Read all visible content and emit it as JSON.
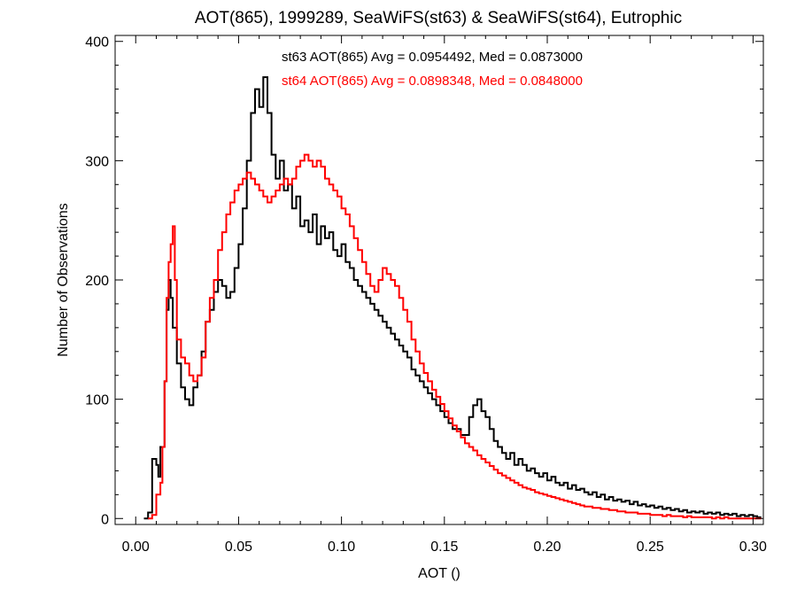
{
  "chart_data": {
    "type": "histogram-step",
    "title": "AOT(865), 1999289, SeaWiFS(st63) & SeaWiFS(st64), Eutrophic",
    "xlabel": "AOT ()",
    "ylabel": "Number of Observations",
    "xlim": [
      -0.01,
      0.305
    ],
    "ylim": [
      -5,
      405
    ],
    "xticks": [
      0.0,
      0.05,
      0.1,
      0.15,
      0.2,
      0.25,
      0.3
    ],
    "xtick_labels": [
      "0.00",
      "0.05",
      "0.10",
      "0.15",
      "0.20",
      "0.25",
      "0.30"
    ],
    "yticks": [
      0,
      100,
      200,
      300,
      400
    ],
    "ytick_labels": [
      "0",
      "100",
      "200",
      "300",
      "400"
    ],
    "grid": false,
    "annotations": [
      {
        "text": "st63 AOT(865) Avg = 0.0954492, Med = 0.0873000",
        "color": "#000000"
      },
      {
        "text": "st64 AOT(865) Avg = 0.0898348, Med = 0.0848000",
        "color": "#ff0000"
      }
    ],
    "series": [
      {
        "color": "#000000",
        "points": [
          [
            0.004,
            0
          ],
          [
            0.006,
            5
          ],
          [
            0.008,
            50
          ],
          [
            0.01,
            45
          ],
          [
            0.011,
            35
          ],
          [
            0.012,
            60
          ],
          [
            0.014,
            115
          ],
          [
            0.015,
            175
          ],
          [
            0.016,
            200
          ],
          [
            0.017,
            185
          ],
          [
            0.018,
            160
          ],
          [
            0.02,
            130
          ],
          [
            0.022,
            110
          ],
          [
            0.024,
            100
          ],
          [
            0.026,
            95
          ],
          [
            0.028,
            110
          ],
          [
            0.03,
            120
          ],
          [
            0.032,
            140
          ],
          [
            0.034,
            165
          ],
          [
            0.036,
            175
          ],
          [
            0.038,
            190
          ],
          [
            0.04,
            200
          ],
          [
            0.042,
            195
          ],
          [
            0.044,
            185
          ],
          [
            0.046,
            190
          ],
          [
            0.048,
            210
          ],
          [
            0.05,
            230
          ],
          [
            0.052,
            260
          ],
          [
            0.054,
            300
          ],
          [
            0.056,
            340
          ],
          [
            0.058,
            360
          ],
          [
            0.06,
            345
          ],
          [
            0.062,
            370
          ],
          [
            0.064,
            340
          ],
          [
            0.066,
            305
          ],
          [
            0.068,
            285
          ],
          [
            0.07,
            300
          ],
          [
            0.072,
            275
          ],
          [
            0.074,
            280
          ],
          [
            0.076,
            260
          ],
          [
            0.078,
            270
          ],
          [
            0.08,
            245
          ],
          [
            0.082,
            250
          ],
          [
            0.084,
            240
          ],
          [
            0.086,
            255
          ],
          [
            0.088,
            230
          ],
          [
            0.09,
            245
          ],
          [
            0.092,
            235
          ],
          [
            0.094,
            240
          ],
          [
            0.096,
            225
          ],
          [
            0.098,
            220
          ],
          [
            0.1,
            230
          ],
          [
            0.102,
            215
          ],
          [
            0.104,
            210
          ],
          [
            0.106,
            200
          ],
          [
            0.108,
            195
          ],
          [
            0.11,
            190
          ],
          [
            0.112,
            185
          ],
          [
            0.114,
            180
          ],
          [
            0.116,
            175
          ],
          [
            0.118,
            170
          ],
          [
            0.12,
            165
          ],
          [
            0.122,
            160
          ],
          [
            0.124,
            155
          ],
          [
            0.126,
            150
          ],
          [
            0.128,
            145
          ],
          [
            0.13,
            140
          ],
          [
            0.132,
            135
          ],
          [
            0.134,
            125
          ],
          [
            0.136,
            120
          ],
          [
            0.138,
            115
          ],
          [
            0.14,
            110
          ],
          [
            0.142,
            105
          ],
          [
            0.144,
            100
          ],
          [
            0.146,
            95
          ],
          [
            0.148,
            90
          ],
          [
            0.15,
            85
          ],
          [
            0.152,
            80
          ],
          [
            0.154,
            75
          ],
          [
            0.156,
            75
          ],
          [
            0.158,
            70
          ],
          [
            0.16,
            70
          ],
          [
            0.162,
            85
          ],
          [
            0.164,
            95
          ],
          [
            0.166,
            100
          ],
          [
            0.168,
            90
          ],
          [
            0.17,
            85
          ],
          [
            0.172,
            75
          ],
          [
            0.174,
            65
          ],
          [
            0.176,
            60
          ],
          [
            0.178,
            55
          ],
          [
            0.18,
            50
          ],
          [
            0.182,
            55
          ],
          [
            0.184,
            45
          ],
          [
            0.186,
            50
          ],
          [
            0.188,
            45
          ],
          [
            0.19,
            40
          ],
          [
            0.192,
            42
          ],
          [
            0.194,
            38
          ],
          [
            0.196,
            35
          ],
          [
            0.198,
            38
          ],
          [
            0.2,
            32
          ],
          [
            0.202,
            35
          ],
          [
            0.204,
            30
          ],
          [
            0.206,
            28
          ],
          [
            0.208,
            30
          ],
          [
            0.21,
            25
          ],
          [
            0.212,
            28
          ],
          [
            0.214,
            24
          ],
          [
            0.216,
            25
          ],
          [
            0.218,
            22
          ],
          [
            0.22,
            20
          ],
          [
            0.222,
            22
          ],
          [
            0.224,
            18
          ],
          [
            0.226,
            20
          ],
          [
            0.228,
            16
          ],
          [
            0.23,
            18
          ],
          [
            0.232,
            15
          ],
          [
            0.234,
            16
          ],
          [
            0.236,
            14
          ],
          [
            0.238,
            15
          ],
          [
            0.24,
            12
          ],
          [
            0.242,
            14
          ],
          [
            0.244,
            11
          ],
          [
            0.246,
            12
          ],
          [
            0.248,
            10
          ],
          [
            0.25,
            11
          ],
          [
            0.252,
            9
          ],
          [
            0.254,
            10
          ],
          [
            0.256,
            8
          ],
          [
            0.258,
            9
          ],
          [
            0.26,
            7
          ],
          [
            0.262,
            8
          ],
          [
            0.264,
            6
          ],
          [
            0.266,
            7
          ],
          [
            0.268,
            5
          ],
          [
            0.27,
            6
          ],
          [
            0.272,
            5
          ],
          [
            0.274,
            6
          ],
          [
            0.276,
            4
          ],
          [
            0.278,
            5
          ],
          [
            0.28,
            4
          ],
          [
            0.282,
            5
          ],
          [
            0.284,
            3
          ],
          [
            0.286,
            4
          ],
          [
            0.288,
            3
          ],
          [
            0.29,
            4
          ],
          [
            0.292,
            2
          ],
          [
            0.294,
            3
          ],
          [
            0.296,
            2
          ],
          [
            0.298,
            3
          ],
          [
            0.3,
            2
          ],
          [
            0.302,
            1
          ],
          [
            0.304,
            1
          ]
        ]
      },
      {
        "color": "#ff0000",
        "points": [
          [
            0.006,
            0
          ],
          [
            0.008,
            3
          ],
          [
            0.01,
            20
          ],
          [
            0.012,
            30
          ],
          [
            0.013,
            60
          ],
          [
            0.014,
            115
          ],
          [
            0.015,
            185
          ],
          [
            0.016,
            215
          ],
          [
            0.017,
            230
          ],
          [
            0.018,
            245
          ],
          [
            0.019,
            200
          ],
          [
            0.02,
            150
          ],
          [
            0.022,
            135
          ],
          [
            0.024,
            130
          ],
          [
            0.026,
            120
          ],
          [
            0.028,
            115
          ],
          [
            0.03,
            120
          ],
          [
            0.032,
            135
          ],
          [
            0.034,
            165
          ],
          [
            0.036,
            185
          ],
          [
            0.038,
            200
          ],
          [
            0.04,
            225
          ],
          [
            0.042,
            240
          ],
          [
            0.044,
            255
          ],
          [
            0.046,
            265
          ],
          [
            0.048,
            275
          ],
          [
            0.05,
            280
          ],
          [
            0.052,
            285
          ],
          [
            0.054,
            290
          ],
          [
            0.056,
            285
          ],
          [
            0.058,
            280
          ],
          [
            0.06,
            275
          ],
          [
            0.062,
            270
          ],
          [
            0.064,
            265
          ],
          [
            0.066,
            270
          ],
          [
            0.068,
            275
          ],
          [
            0.07,
            280
          ],
          [
            0.072,
            285
          ],
          [
            0.074,
            280
          ],
          [
            0.076,
            285
          ],
          [
            0.078,
            295
          ],
          [
            0.08,
            300
          ],
          [
            0.082,
            305
          ],
          [
            0.084,
            300
          ],
          [
            0.086,
            295
          ],
          [
            0.088,
            300
          ],
          [
            0.09,
            295
          ],
          [
            0.092,
            285
          ],
          [
            0.094,
            280
          ],
          [
            0.096,
            275
          ],
          [
            0.098,
            270
          ],
          [
            0.1,
            260
          ],
          [
            0.102,
            255
          ],
          [
            0.104,
            245
          ],
          [
            0.106,
            235
          ],
          [
            0.108,
            225
          ],
          [
            0.11,
            215
          ],
          [
            0.112,
            205
          ],
          [
            0.114,
            195
          ],
          [
            0.116,
            190
          ],
          [
            0.118,
            200
          ],
          [
            0.12,
            210
          ],
          [
            0.122,
            205
          ],
          [
            0.124,
            200
          ],
          [
            0.126,
            195
          ],
          [
            0.128,
            185
          ],
          [
            0.13,
            175
          ],
          [
            0.132,
            165
          ],
          [
            0.134,
            150
          ],
          [
            0.136,
            140
          ],
          [
            0.138,
            130
          ],
          [
            0.14,
            122
          ],
          [
            0.142,
            115
          ],
          [
            0.144,
            108
          ],
          [
            0.146,
            102
          ],
          [
            0.148,
            96
          ],
          [
            0.15,
            90
          ],
          [
            0.152,
            84
          ],
          [
            0.154,
            78
          ],
          [
            0.156,
            73
          ],
          [
            0.158,
            68
          ],
          [
            0.16,
            63
          ],
          [
            0.162,
            60
          ],
          [
            0.164,
            57
          ],
          [
            0.166,
            53
          ],
          [
            0.168,
            50
          ],
          [
            0.17,
            47
          ],
          [
            0.172,
            44
          ],
          [
            0.174,
            41
          ],
          [
            0.176,
            38
          ],
          [
            0.178,
            36
          ],
          [
            0.18,
            34
          ],
          [
            0.182,
            32
          ],
          [
            0.184,
            30
          ],
          [
            0.186,
            28
          ],
          [
            0.188,
            26
          ],
          [
            0.19,
            25
          ],
          [
            0.192,
            24
          ],
          [
            0.194,
            22
          ],
          [
            0.196,
            21
          ],
          [
            0.198,
            20
          ],
          [
            0.2,
            19
          ],
          [
            0.202,
            18
          ],
          [
            0.204,
            17
          ],
          [
            0.206,
            16
          ],
          [
            0.208,
            15
          ],
          [
            0.21,
            14
          ],
          [
            0.212,
            13
          ],
          [
            0.214,
            12
          ],
          [
            0.216,
            11
          ],
          [
            0.218,
            10
          ],
          [
            0.22,
            10
          ],
          [
            0.222,
            9
          ],
          [
            0.224,
            9
          ],
          [
            0.226,
            8
          ],
          [
            0.228,
            8
          ],
          [
            0.23,
            7
          ],
          [
            0.232,
            7
          ],
          [
            0.234,
            6
          ],
          [
            0.236,
            6
          ],
          [
            0.238,
            5
          ],
          [
            0.24,
            5
          ],
          [
            0.242,
            5
          ],
          [
            0.244,
            4
          ],
          [
            0.246,
            4
          ],
          [
            0.248,
            4
          ],
          [
            0.25,
            3
          ],
          [
            0.252,
            3
          ],
          [
            0.254,
            3
          ],
          [
            0.256,
            2
          ],
          [
            0.258,
            3
          ],
          [
            0.26,
            2
          ],
          [
            0.262,
            2
          ],
          [
            0.264,
            2
          ],
          [
            0.266,
            1
          ],
          [
            0.268,
            2
          ],
          [
            0.27,
            1
          ],
          [
            0.272,
            1
          ],
          [
            0.274,
            1
          ],
          [
            0.276,
            1
          ],
          [
            0.278,
            1
          ],
          [
            0.28,
            0
          ],
          [
            0.282,
            1
          ],
          [
            0.284,
            0
          ],
          [
            0.286,
            1
          ],
          [
            0.288,
            0
          ],
          [
            0.29,
            0
          ],
          [
            0.292,
            0
          ],
          [
            0.294,
            0
          ],
          [
            0.296,
            0
          ],
          [
            0.298,
            0
          ],
          [
            0.3,
            0
          ],
          [
            0.302,
            0
          ],
          [
            0.304,
            0
          ]
        ]
      }
    ]
  }
}
